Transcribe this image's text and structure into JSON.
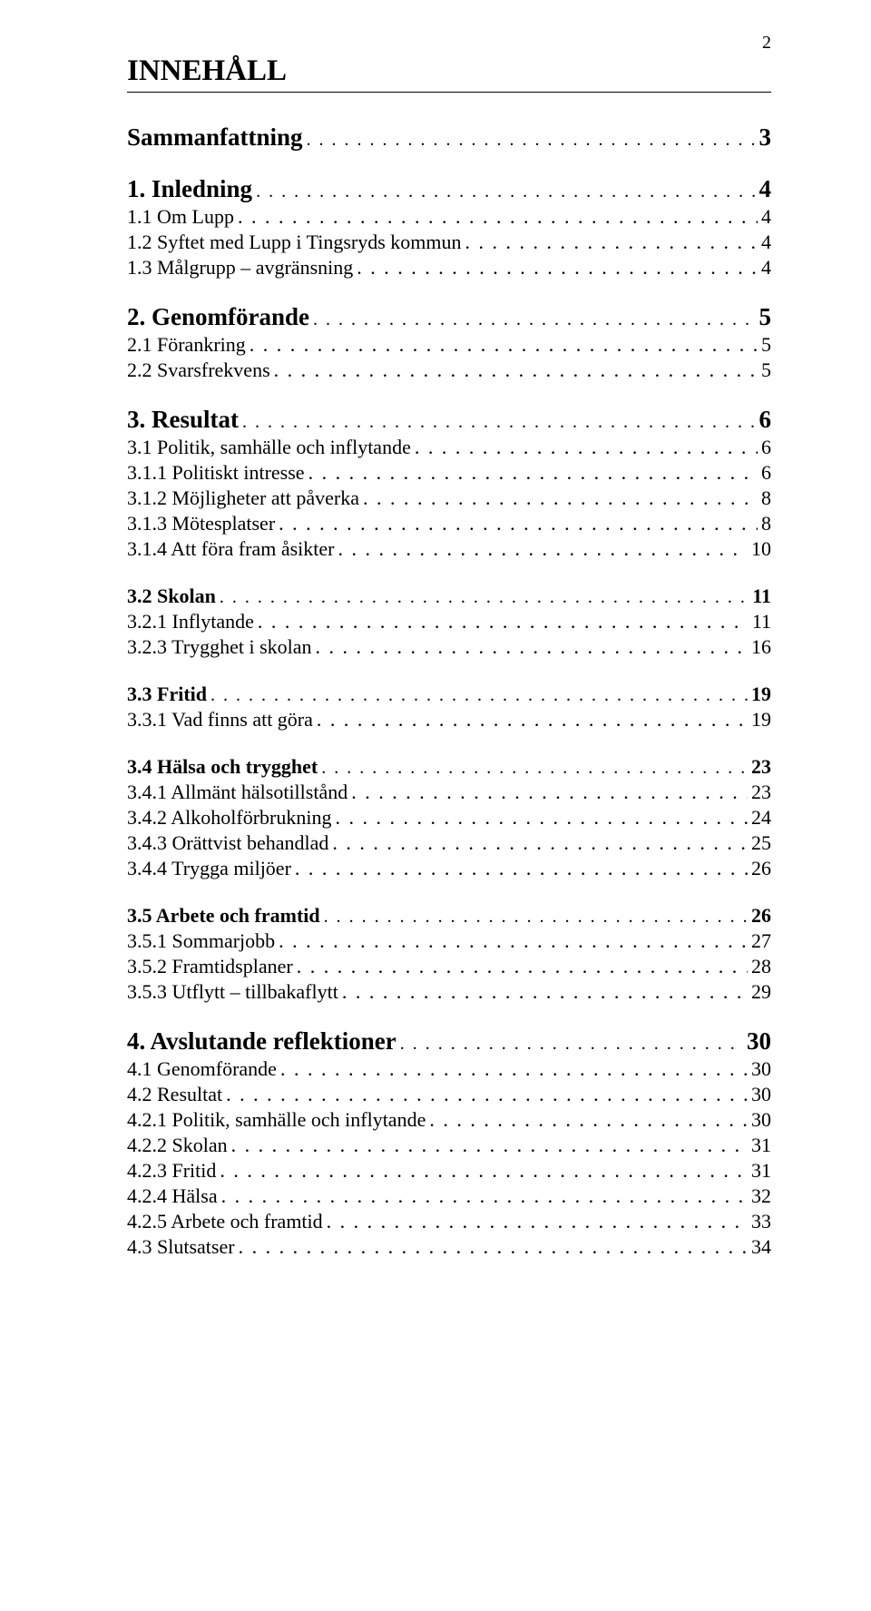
{
  "page_number": "2",
  "title": "INNEHÅLL",
  "dots": ". . . . . . . . . . . . . . . . . . . . . . . . . . . . . . . . . . . . . . . . . . . . . . . . . . . . . . . . . . . . . . . . . . . . . . . . . . . . . . . . . . . . . . . . . . . . . . . . . . . . . . . . . . . . . . . . . . . . . . . . . . . . . . . . . . . . . .",
  "toc": [
    {
      "lines": [
        {
          "label": "Sammanfattning",
          "page": "3",
          "lvl": "lvl0"
        }
      ]
    },
    {
      "lines": [
        {
          "label": "1. Inledning",
          "page": "4",
          "lvl": "lvl0"
        },
        {
          "label": "1.1 Om Lupp",
          "page": "4",
          "lvl": "lvl1-plain"
        },
        {
          "label": "1.2 Syftet med Lupp i Tingsryds kommun",
          "page": "4",
          "lvl": "lvl1-plain"
        },
        {
          "label": "1.3 Målgrupp – avgränsning",
          "page": "4",
          "lvl": "lvl1-plain"
        }
      ]
    },
    {
      "lines": [
        {
          "label": "2. Genomförande",
          "page": "5",
          "lvl": "lvl0"
        },
        {
          "label": "2.1 Förankring",
          "page": "5",
          "lvl": "lvl1-plain"
        },
        {
          "label": "2.2 Svarsfrekvens",
          "page": "5",
          "lvl": "lvl1-plain"
        }
      ]
    },
    {
      "lines": [
        {
          "label": "3. Resultat",
          "page": "6",
          "lvl": "lvl0"
        },
        {
          "label": "3.1 Politik, samhälle och inflytande",
          "page": "6",
          "lvl": "lvl1-plain"
        },
        {
          "label": "3.1.1 Politiskt intresse",
          "page": "6",
          "lvl": "lvl2"
        },
        {
          "label": "3.1.2 Möjligheter att påverka",
          "page": "8",
          "lvl": "lvl2"
        },
        {
          "label": "3.1.3 Mötesplatser",
          "page": "8",
          "lvl": "lvl2"
        },
        {
          "label": "3.1.4 Att föra fram åsikter",
          "page": "10",
          "lvl": "lvl2"
        }
      ]
    },
    {
      "lines": [
        {
          "label": "3.2 Skolan",
          "page": "11",
          "lvl": "lvl1"
        },
        {
          "label": "3.2.1 Inflytande",
          "page": "11",
          "lvl": "lvl2"
        },
        {
          "label": "3.2.3 Trygghet i skolan",
          "page": "16",
          "lvl": "lvl2"
        }
      ]
    },
    {
      "lines": [
        {
          "label": "3.3 Fritid",
          "page": "19",
          "lvl": "lvl1"
        },
        {
          "label": "3.3.1 Vad finns att göra",
          "page": "19",
          "lvl": "lvl2"
        }
      ]
    },
    {
      "lines": [
        {
          "label": "3.4 Hälsa och trygghet",
          "page": "23",
          "lvl": "lvl1"
        },
        {
          "label": "3.4.1 Allmänt hälsotillstånd",
          "page": "23",
          "lvl": "lvl2"
        },
        {
          "label": "3.4.2 Alkoholförbrukning",
          "page": "24",
          "lvl": "lvl2"
        },
        {
          "label": "3.4.3 Orättvist behandlad",
          "page": "25",
          "lvl": "lvl2"
        },
        {
          "label": "3.4.4 Trygga miljöer",
          "page": "26",
          "lvl": "lvl2"
        }
      ]
    },
    {
      "lines": [
        {
          "label": "3.5 Arbete och framtid",
          "page": "26",
          "lvl": "lvl1"
        },
        {
          "label": "3.5.1 Sommarjobb",
          "page": "27",
          "lvl": "lvl2"
        },
        {
          "label": "3.5.2 Framtidsplaner",
          "page": "28",
          "lvl": "lvl2"
        },
        {
          "label": "3.5.3 Utflytt – tillbakaflytt",
          "page": "29",
          "lvl": "lvl2"
        }
      ]
    },
    {
      "lines": [
        {
          "label": "4. Avslutande reflektioner",
          "page": "30",
          "lvl": "lvl0"
        },
        {
          "label": "4.1 Genomförande",
          "page": "30",
          "lvl": "lvl1-plain"
        },
        {
          "label": "4.2 Resultat",
          "page": "30",
          "lvl": "lvl1-plain"
        },
        {
          "label": "4.2.1 Politik, samhälle och inflytande",
          "page": "30",
          "lvl": "lvl2"
        },
        {
          "label": "4.2.2 Skolan",
          "page": "31",
          "lvl": "lvl2"
        },
        {
          "label": "4.2.3 Fritid",
          "page": "31",
          "lvl": "lvl2"
        },
        {
          "label": "4.2.4 Hälsa",
          "page": "32",
          "lvl": "lvl2"
        },
        {
          "label": "4.2.5 Arbete och framtid",
          "page": "33",
          "lvl": "lvl2"
        },
        {
          "label": "4.3 Slutsatser",
          "page": "34",
          "lvl": "lvl1-plain"
        }
      ]
    }
  ]
}
